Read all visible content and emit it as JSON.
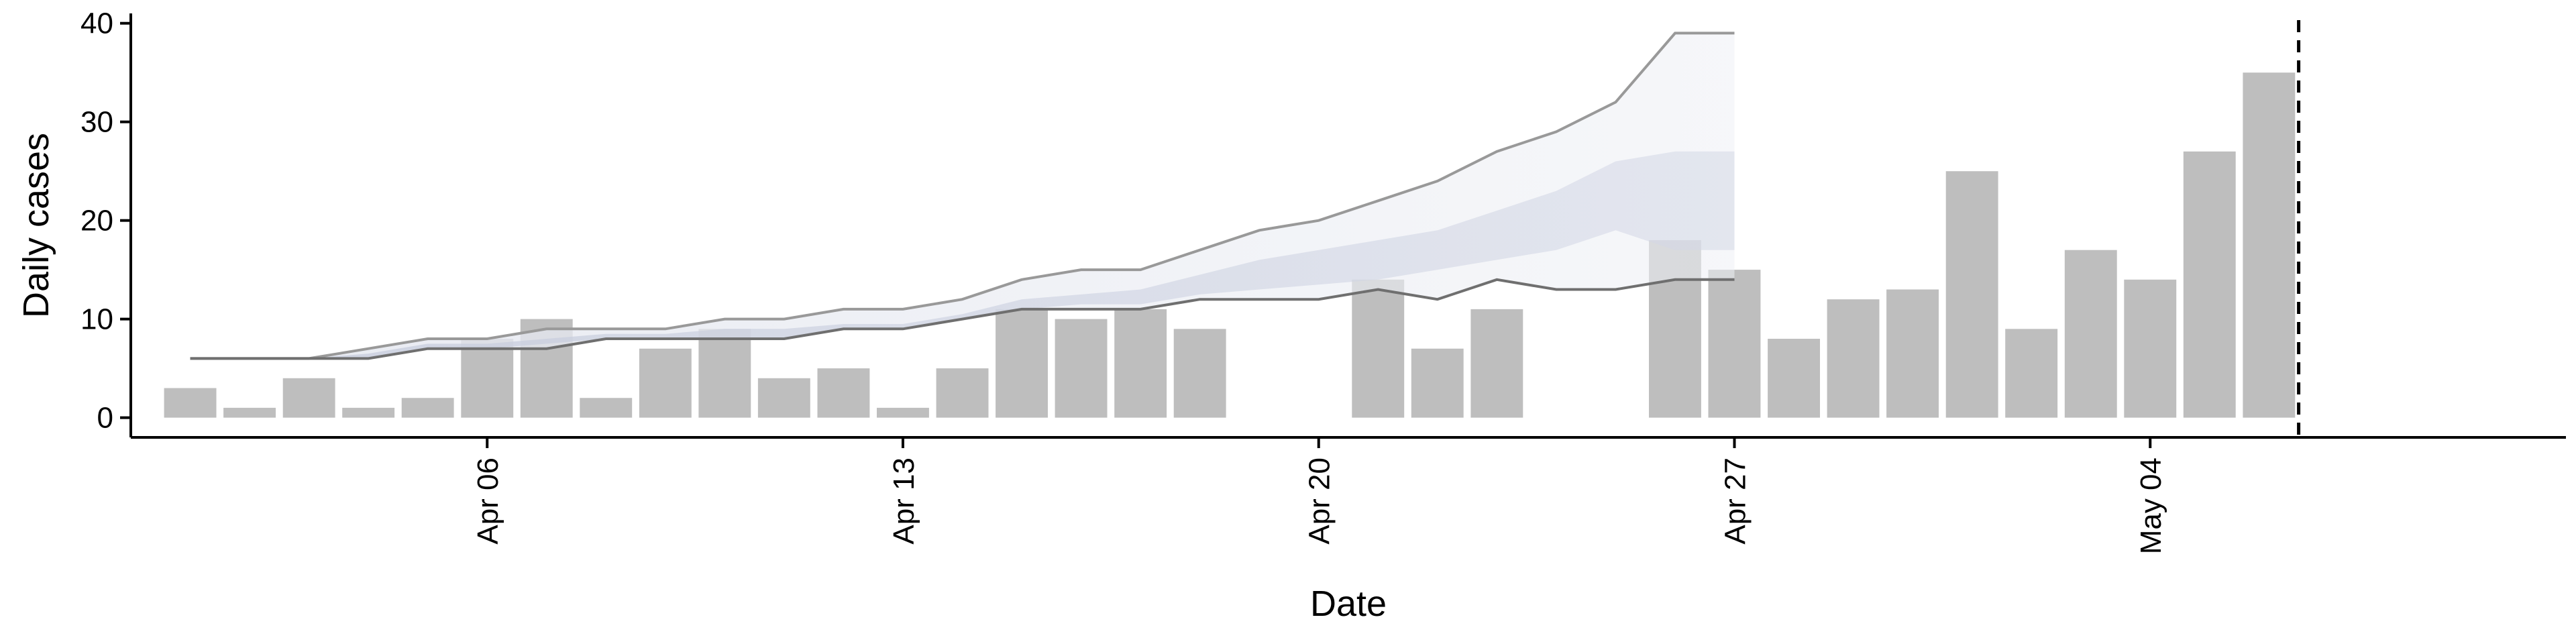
{
  "chart_data": {
    "type": "bar",
    "title": "",
    "xlabel": "Date",
    "ylabel": "Daily cases",
    "ylim": [
      -2,
      41
    ],
    "xlim": [
      "2020-03-31",
      "2020-05-11"
    ],
    "y_ticks": [
      0,
      10,
      20,
      30,
      40
    ],
    "x_ticks": [
      {
        "date": "2020-04-06",
        "label": "Apr 06"
      },
      {
        "date": "2020-04-13",
        "label": "Apr 13"
      },
      {
        "date": "2020-04-20",
        "label": "Apr 20"
      },
      {
        "date": "2020-04-27",
        "label": "Apr 27"
      },
      {
        "date": "2020-05-04",
        "label": "May 04"
      }
    ],
    "grid": false,
    "bar_color": "#bebebe",
    "dates": [
      "2020-04-01",
      "2020-04-02",
      "2020-04-03",
      "2020-04-04",
      "2020-04-05",
      "2020-04-06",
      "2020-04-07",
      "2020-04-08",
      "2020-04-09",
      "2020-04-10",
      "2020-04-11",
      "2020-04-12",
      "2020-04-13",
      "2020-04-14",
      "2020-04-15",
      "2020-04-16",
      "2020-04-17",
      "2020-04-18",
      "2020-04-19",
      "2020-04-20",
      "2020-04-21",
      "2020-04-22",
      "2020-04-23",
      "2020-04-24",
      "2020-04-25",
      "2020-04-26",
      "2020-04-27",
      "2020-04-28",
      "2020-04-29",
      "2020-04-30",
      "2020-05-01",
      "2020-05-02",
      "2020-05-03",
      "2020-05-04",
      "2020-05-05",
      "2020-05-06",
      "2020-05-07"
    ],
    "values": [
      3,
      1,
      4,
      1,
      2,
      8,
      10,
      2,
      7,
      9,
      4,
      5,
      1,
      5,
      11,
      10,
      11,
      9,
      0,
      0,
      14,
      7,
      11,
      0,
      0,
      18,
      15,
      8,
      12,
      13,
      25,
      9,
      17,
      14,
      27,
      35,
      0
    ],
    "vline_date": "2020-05-06.5",
    "forecast": {
      "dates": [
        "2020-04-01",
        "2020-04-02",
        "2020-04-03",
        "2020-04-04",
        "2020-04-05",
        "2020-04-06",
        "2020-04-07",
        "2020-04-08",
        "2020-04-09",
        "2020-04-10",
        "2020-04-11",
        "2020-04-12",
        "2020-04-13",
        "2020-04-14",
        "2020-04-15",
        "2020-04-16",
        "2020-04-17",
        "2020-04-18",
        "2020-04-19",
        "2020-04-20",
        "2020-04-21",
        "2020-04-22",
        "2020-04-23",
        "2020-04-24",
        "2020-04-25",
        "2020-04-26",
        "2020-04-27"
      ],
      "outer_upper": [
        6,
        6,
        6,
        7,
        8,
        8,
        9,
        9,
        9,
        10,
        10,
        11,
        11,
        12,
        14,
        15,
        15,
        17,
        19,
        20,
        22,
        24,
        27,
        29,
        32,
        39,
        39
      ],
      "outer_lower": [
        6,
        6,
        6,
        6,
        7,
        7,
        7,
        8,
        8,
        8,
        8,
        9,
        9,
        10,
        11,
        11,
        11,
        12,
        12,
        12,
        13,
        12,
        14,
        13,
        13,
        14,
        14
      ],
      "inner_upper": [
        6,
        6,
        6,
        6.5,
        7.5,
        7.5,
        8,
        8.5,
        8.5,
        9,
        9,
        9.5,
        9.5,
        10.5,
        12,
        12.5,
        13,
        14.5,
        16,
        17,
        18,
        19,
        21,
        23,
        26,
        27,
        27
      ],
      "inner_lower": [
        6,
        6,
        6,
        6,
        7,
        7,
        7.5,
        8,
        8,
        8,
        8,
        9,
        9,
        10,
        11,
        11.5,
        11.5,
        12.5,
        13,
        13.5,
        14,
        15,
        16,
        17,
        19,
        17,
        17
      ],
      "outer_line_color": "#999999",
      "band_outer_color": "#e4e6ef",
      "band_inner_color": "#c9cddf"
    }
  }
}
